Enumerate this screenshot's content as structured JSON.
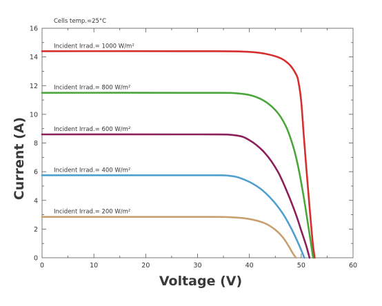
{
  "chart_data": {
    "type": "line",
    "annotation": "Cells temp.=25°C",
    "xlabel": "Voltage (V)",
    "ylabel": "Current (A)",
    "xlim": [
      0,
      60
    ],
    "ylim": [
      0,
      16
    ],
    "xticks": [
      0,
      10,
      20,
      30,
      40,
      50,
      60
    ],
    "yticks": [
      0,
      2,
      4,
      6,
      8,
      10,
      12,
      14,
      16
    ],
    "grid": false,
    "series": [
      {
        "name": "Incident Irrad.= 1000 W/m²",
        "color": "#d62e2e",
        "x": [
          0,
          30,
          40,
          45,
          47.5,
          49,
          49.5,
          50,
          50.5,
          51,
          51.5,
          52,
          52.3,
          52.6
        ],
        "y": [
          14.4,
          14.4,
          14.35,
          14.05,
          13.55,
          12.8,
          12.2,
          10.9,
          8.5,
          6.2,
          4.0,
          1.9,
          0.8,
          0
        ]
      },
      {
        "name": "Incident Irrad.= 800 W/m²",
        "color": "#4aa63a",
        "x": [
          0,
          30,
          38,
          42,
          45,
          47,
          48.5,
          49.5,
          50.5,
          51.2,
          51.8,
          52.3
        ],
        "y": [
          11.5,
          11.5,
          11.45,
          11.1,
          10.3,
          9.2,
          7.7,
          6.2,
          4.2,
          2.6,
          1.2,
          0
        ]
      },
      {
        "name": "Incident Irrad.= 600 W/m²",
        "color": "#8b1f5a",
        "x": [
          0,
          30,
          37,
          40,
          43,
          45.5,
          47.5,
          49,
          50,
          51,
          51.6
        ],
        "y": [
          8.6,
          8.6,
          8.55,
          8.2,
          7.3,
          6.0,
          4.4,
          3.0,
          1.9,
          0.8,
          0
        ]
      },
      {
        "name": "Incident Irrad.= 400 W/m²",
        "color": "#4f9fcf",
        "x": [
          0,
          30,
          36,
          39,
          42,
          44.5,
          46.5,
          48,
          49.2,
          50.1,
          50.6
        ],
        "y": [
          5.75,
          5.75,
          5.72,
          5.45,
          4.85,
          4.0,
          3.05,
          2.1,
          1.2,
          0.45,
          0
        ]
      },
      {
        "name": "Incident Irrad.= 200 W/m²",
        "color": "#c8a070",
        "x": [
          0,
          30,
          36,
          40,
          43,
          45,
          46.5,
          47.6,
          48.4,
          49
        ],
        "y": [
          2.85,
          2.85,
          2.83,
          2.7,
          2.4,
          1.95,
          1.4,
          0.8,
          0.3,
          0
        ]
      }
    ]
  }
}
